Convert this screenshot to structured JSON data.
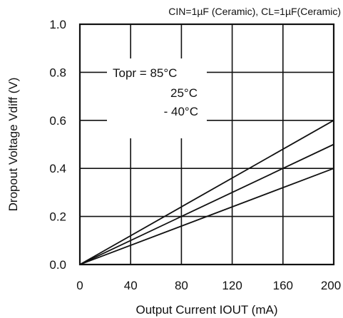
{
  "chart_data": {
    "type": "line",
    "title": "",
    "condition_note": "CIN=1µF (Ceramic), CL=1µF(Ceramic)",
    "xlabel": "Output Current IOUT (mA)",
    "ylabel": "Dropout Voltage Vdiff (V)",
    "xlim": [
      0,
      200
    ],
    "ylim": [
      0.0,
      1.0
    ],
    "x_ticks": [
      0,
      40,
      80,
      120,
      160,
      200
    ],
    "x_tick_labels": [
      "0",
      "40",
      "80",
      "120",
      "160",
      "200"
    ],
    "y_ticks": [
      0.0,
      0.2,
      0.4,
      0.6,
      0.8,
      1.0
    ],
    "y_tick_labels": [
      "0.0",
      "0.2",
      "0.4",
      "0.6",
      "0.8",
      "1.0"
    ],
    "grid": true,
    "legend_lines": [
      "Topr = 85°C",
      "25°C",
      "- 40°C"
    ],
    "x": [
      0,
      200
    ],
    "series": [
      {
        "values": [
          0.0,
          0.6
        ]
      },
      {
        "values": [
          0.0,
          0.5
        ]
      },
      {
        "values": [
          0.0,
          0.4
        ]
      }
    ]
  }
}
